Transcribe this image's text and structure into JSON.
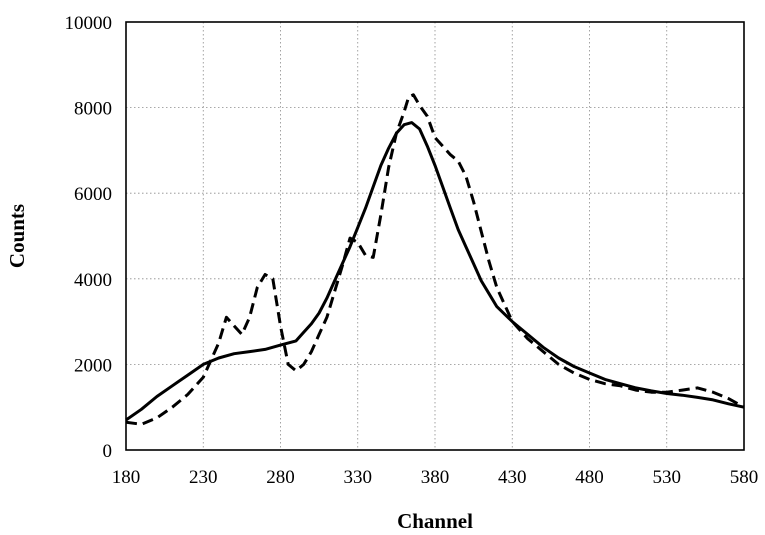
{
  "chart_data": {
    "type": "line",
    "title": "",
    "xlabel": "Channel",
    "ylabel": "Counts",
    "xlim": [
      180,
      580
    ],
    "ylim": [
      0,
      10000
    ],
    "x_ticks": [
      180,
      230,
      280,
      330,
      380,
      430,
      480,
      530,
      580
    ],
    "y_ticks": [
      0,
      2000,
      4000,
      6000,
      8000,
      10000
    ],
    "grid": true,
    "legend": "none",
    "series": [
      {
        "style": "solid",
        "x": [
          180,
          190,
          200,
          210,
          220,
          230,
          240,
          250,
          260,
          270,
          280,
          290,
          295,
          300,
          305,
          310,
          315,
          320,
          325,
          330,
          335,
          340,
          345,
          350,
          355,
          360,
          365,
          370,
          375,
          380,
          385,
          390,
          395,
          400,
          405,
          410,
          415,
          420,
          430,
          440,
          450,
          460,
          470,
          480,
          490,
          500,
          510,
          520,
          530,
          540,
          550,
          560,
          570,
          580
        ],
        "y": [
          700,
          950,
          1250,
          1500,
          1750,
          2000,
          2150,
          2250,
          2300,
          2350,
          2450,
          2550,
          2750,
          2950,
          3200,
          3550,
          3950,
          4350,
          4750,
          5200,
          5650,
          6150,
          6650,
          7050,
          7400,
          7600,
          7650,
          7500,
          7100,
          6650,
          6150,
          5650,
          5150,
          4750,
          4350,
          3950,
          3650,
          3350,
          3000,
          2700,
          2400,
          2150,
          1950,
          1800,
          1650,
          1550,
          1450,
          1380,
          1320,
          1280,
          1230,
          1170,
          1080,
          1000
        ]
      },
      {
        "style": "dashed",
        "x": [
          180,
          190,
          200,
          210,
          220,
          230,
          240,
          245,
          250,
          255,
          260,
          265,
          270,
          275,
          280,
          285,
          290,
          295,
          300,
          305,
          310,
          315,
          320,
          325,
          330,
          335,
          340,
          345,
          350,
          355,
          360,
          363,
          366,
          370,
          375,
          380,
          385,
          390,
          395,
          400,
          405,
          410,
          415,
          420,
          430,
          440,
          450,
          460,
          470,
          480,
          490,
          500,
          510,
          520,
          530,
          540,
          550,
          560,
          570,
          580
        ],
        "y": [
          650,
          600,
          750,
          1000,
          1300,
          1700,
          2500,
          3100,
          2900,
          2700,
          3100,
          3800,
          4100,
          4000,
          2900,
          2000,
          1850,
          2000,
          2300,
          2700,
          3100,
          3700,
          4300,
          4950,
          4850,
          4550,
          4500,
          5500,
          6600,
          7400,
          7900,
          8250,
          8300,
          8050,
          7800,
          7300,
          7100,
          6900,
          6750,
          6400,
          5800,
          5100,
          4400,
          3800,
          3000,
          2600,
          2300,
          2000,
          1800,
          1650,
          1550,
          1500,
          1400,
          1350,
          1350,
          1400,
          1450,
          1350,
          1200,
          1000
        ]
      }
    ]
  }
}
